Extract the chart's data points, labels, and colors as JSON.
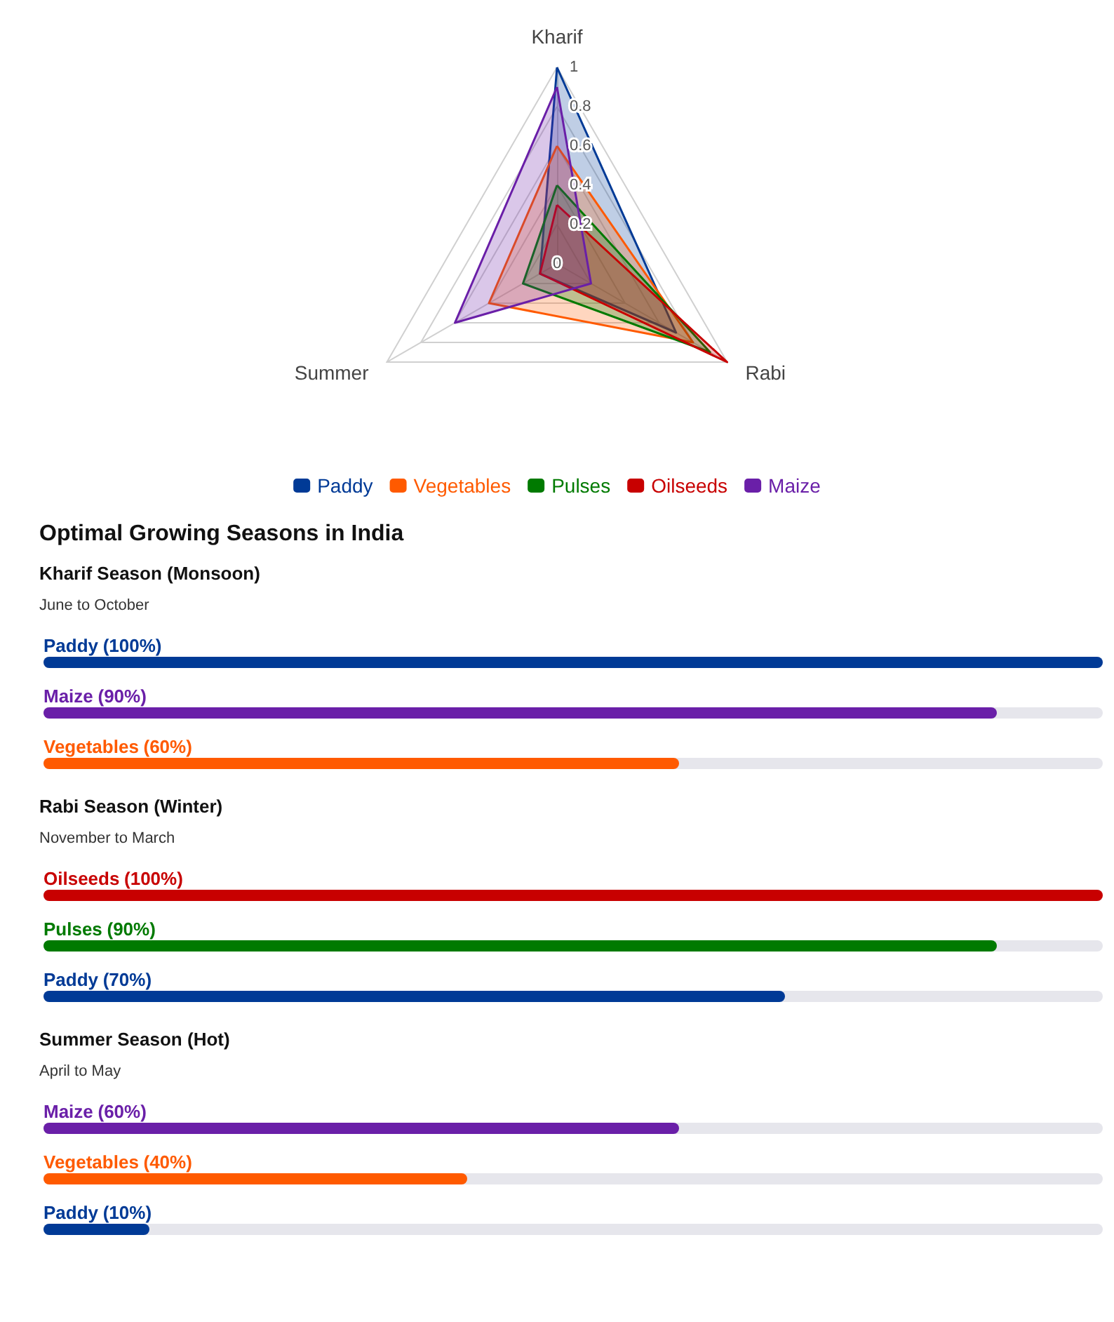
{
  "chart_data": [
    {
      "type": "radar",
      "categories": [
        "Kharif",
        "Rabi",
        "Summer"
      ],
      "ylim": [
        0,
        1
      ],
      "yticks": [
        0,
        0.2,
        0.4,
        0.6,
        0.8,
        1
      ],
      "grid": true,
      "legend": "bottom",
      "series": [
        {
          "name": "Paddy",
          "color": "#003a96",
          "values": [
            1,
            0.7,
            0.1
          ]
        },
        {
          "name": "Vegetables",
          "color": "#ff5a00",
          "values": [
            0.6,
            0.8,
            0.4
          ]
        },
        {
          "name": "Pulses",
          "color": "#007a00",
          "values": [
            0.4,
            0.9,
            0.2
          ]
        },
        {
          "name": "Oilseeds",
          "color": "#c80000",
          "values": [
            0.3,
            1,
            0.1
          ]
        },
        {
          "name": "Maize",
          "color": "#6a1fa8",
          "values": [
            0.9,
            0.2,
            0.6
          ]
        }
      ]
    },
    {
      "type": "other",
      "title": "Optimal Growing Seasons in India"
    },
    {
      "type": "bar",
      "orientation": "horizontal",
      "title": "Kharif Season (Monsoon)",
      "subtitle": "June to October",
      "categories": [
        "Paddy",
        "Maize",
        "Vegetables"
      ],
      "values": [
        100,
        90,
        60
      ],
      "value_labels": [
        "(100%)",
        "(90%)",
        "(60%)"
      ],
      "colors": [
        "#003a96",
        "#6a1fa8",
        "#ff5a00"
      ],
      "xlim": [
        0,
        100
      ]
    },
    {
      "type": "bar",
      "orientation": "horizontal",
      "title": "Rabi Season (Winter)",
      "subtitle": "November to March",
      "categories": [
        "Oilseeds",
        "Pulses",
        "Paddy"
      ],
      "values": [
        100,
        90,
        70
      ],
      "value_labels": [
        "(100%)",
        "(90%)",
        "(70%)"
      ],
      "colors": [
        "#c80000",
        "#007a00",
        "#003a96"
      ],
      "xlim": [
        0,
        100
      ]
    },
    {
      "type": "bar",
      "orientation": "horizontal",
      "title": "Summer Season (Hot)",
      "subtitle": "April to May",
      "categories": [
        "Maize",
        "Vegetables",
        "Paddy"
      ],
      "values": [
        60,
        40,
        10
      ],
      "value_labels": [
        "(60%)",
        "(40%)",
        "(10%)"
      ],
      "colors": [
        "#6a1fa8",
        "#ff5a00",
        "#003a96"
      ],
      "xlim": [
        0,
        100
      ]
    }
  ]
}
